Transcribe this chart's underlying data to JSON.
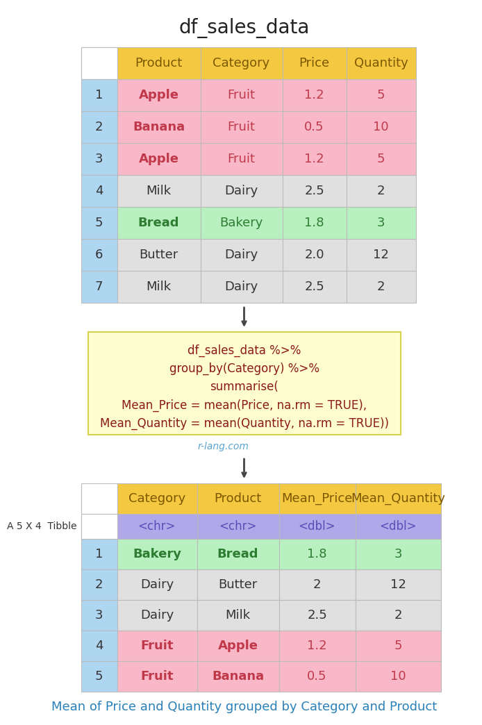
{
  "title": "df_sales_data",
  "table1": {
    "headers": [
      "Product",
      "Category",
      "Price",
      "Quantity"
    ],
    "rows": [
      [
        "1",
        "Apple",
        "Fruit",
        "1.2",
        "5"
      ],
      [
        "2",
        "Banana",
        "Fruit",
        "0.5",
        "10"
      ],
      [
        "3",
        "Apple",
        "Fruit",
        "1.2",
        "5"
      ],
      [
        "4",
        "Milk",
        "Dairy",
        "2.5",
        "2"
      ],
      [
        "5",
        "Bread",
        "Bakery",
        "1.8",
        "3"
      ],
      [
        "6",
        "Butter",
        "Dairy",
        "2.0",
        "12"
      ],
      [
        "7",
        "Milk",
        "Dairy",
        "2.5",
        "2"
      ]
    ],
    "header_bg": "#F5C842",
    "index_bg": "#AED6F1",
    "fruit_bg": "#F9B8C8",
    "dairy_bg": "#E0E0E0",
    "bakery_bg": "#B8F0C0",
    "fruit_text": "#C0394B",
    "bakery_text": "#2E7D32",
    "dairy_text": "#333333",
    "header_text": "#7B5800",
    "index_text": "#333333"
  },
  "code_box": {
    "lines": [
      "df_sales_data %>%",
      "group_by(Category) %>%",
      "summarise(",
      "Mean_Price = mean(Price, na.rm = TRUE),",
      "Mean_Quantity = mean(Quantity, na.rm = TRUE))"
    ],
    "bg": "#FDFDD0",
    "border": "#D4D44A",
    "text_color": "#8B1A1A"
  },
  "watermark": "r-lang.com",
  "watermark_color": "#5BA4CF",
  "table2": {
    "headers": [
      "Category",
      "Product",
      "Mean_Price",
      "Mean_Quantity"
    ],
    "subtypes": [
      "<chr>",
      "<chr>",
      "<dbl>",
      "<dbl>"
    ],
    "rows": [
      [
        "1",
        "Bakery",
        "Bread",
        "1.8",
        "3"
      ],
      [
        "2",
        "Dairy",
        "Butter",
        "2",
        "12"
      ],
      [
        "3",
        "Dairy",
        "Milk",
        "2.5",
        "2"
      ],
      [
        "4",
        "Fruit",
        "Apple",
        "1.2",
        "5"
      ],
      [
        "5",
        "Fruit",
        "Banana",
        "0.5",
        "10"
      ]
    ],
    "header_bg": "#F5C842",
    "subtype_bg": "#B0A8E8",
    "index_bg": "#AED6F1",
    "fruit_bg": "#F9B8C8",
    "dairy_bg": "#E0E0E0",
    "bakery_bg": "#B8F0C0",
    "fruit_text": "#C0394B",
    "bakery_text": "#2E7D32",
    "dairy_text": "#333333",
    "header_text": "#7B5800",
    "subtype_text": "#5B4DB8",
    "index_text": "#333333",
    "label": "A 5 X 4  Tibble"
  },
  "footer": "Mean of Price and Quantity grouped by Category and Product",
  "footer_color": "#2980B9",
  "bg_color": "#FFFFFF",
  "arrow_color": "#444444"
}
